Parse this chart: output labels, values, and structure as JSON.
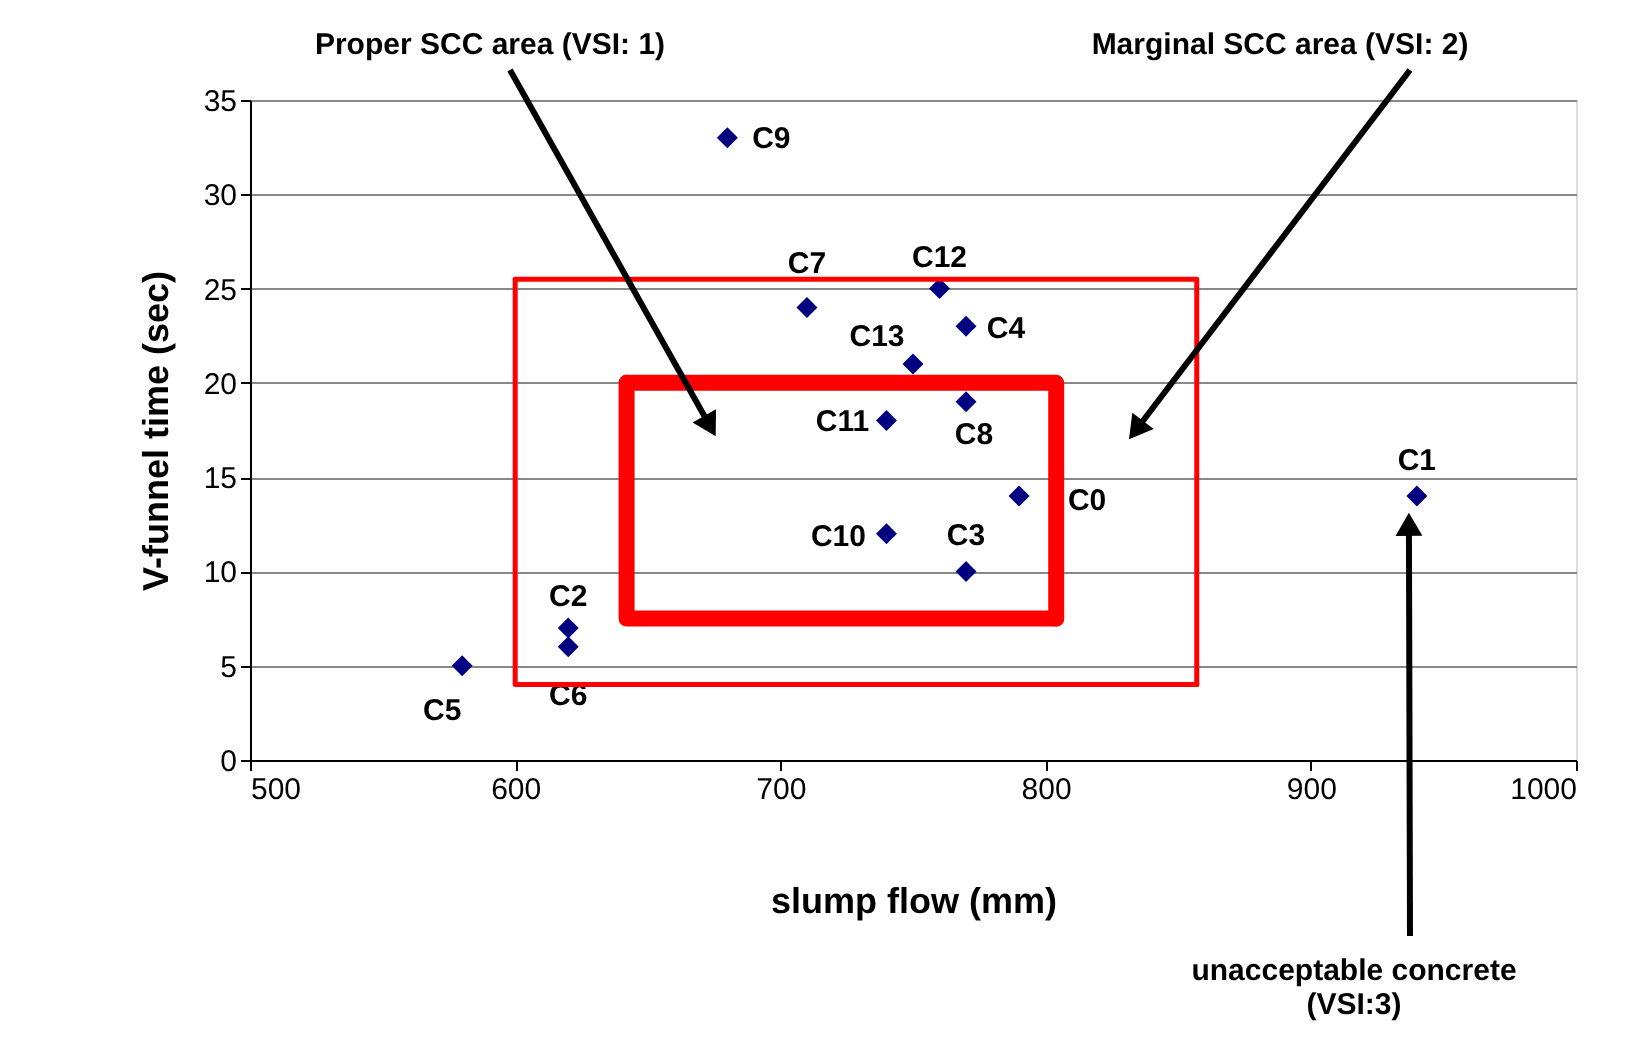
{
  "chart_data": {
    "type": "scatter",
    "xlabel": "slump flow (mm)",
    "ylabel": "V-funnel time (sec)",
    "xlim": [
      500,
      1000
    ],
    "xticks": [
      500,
      600,
      700,
      800,
      900,
      {
        "value": 1000,
        "label": "1000"
      }
    ],
    "ylim": [
      0,
      35
    ],
    "yticks": [
      0,
      5,
      10,
      15,
      20,
      25,
      30,
      35
    ],
    "grid": "y",
    "marker": "diamond",
    "series": [
      {
        "name": "C9",
        "color": "#000080",
        "x": [
          680
        ],
        "values": [
          33
        ]
      },
      {
        "name": "C7",
        "color": "#000080",
        "x": [
          710
        ],
        "values": [
          24
        ]
      },
      {
        "name": "C12",
        "color": "#000080",
        "x": [
          760
        ],
        "values": [
          25
        ]
      },
      {
        "name": "C4",
        "color": "#000080",
        "x": [
          770
        ],
        "values": [
          23
        ]
      },
      {
        "name": "C13",
        "color": "#000080",
        "x": [
          750
        ],
        "values": [
          21
        ]
      },
      {
        "name": "C8",
        "color": "#000080",
        "x": [
          770
        ],
        "values": [
          19
        ]
      },
      {
        "name": "C11",
        "color": "#000080",
        "x": [
          740
        ],
        "values": [
          18
        ]
      },
      {
        "name": "C0",
        "color": "#000080",
        "x": [
          790
        ],
        "values": [
          14
        ]
      },
      {
        "name": "C10",
        "color": "#000080",
        "x": [
          740
        ],
        "values": [
          12
        ]
      },
      {
        "name": "C3",
        "color": "#000080",
        "x": [
          770
        ],
        "values": [
          10
        ]
      },
      {
        "name": "C1",
        "color": "#000080",
        "x": [
          940
        ],
        "values": [
          14
        ]
      },
      {
        "name": "C2",
        "color": "#000080",
        "x": [
          620
        ],
        "values": [
          7
        ]
      },
      {
        "name": "C6",
        "color": "#000080",
        "x": [
          620
        ],
        "values": [
          6
        ]
      },
      {
        "name": "C5",
        "color": "#000080",
        "x": [
          580
        ],
        "values": [
          5
        ]
      },
      {
        "type": "line",
        "marker": "none",
        "color": "#ff0000",
        "x": [
          600,
          857,
          857
        ],
        "values": [
          25.5,
          25.5,
          4
        ]
      },
      {
        "type": "line",
        "marker": "none",
        "color": "#ff0000",
        "x": [
          600,
          600,
          857
        ],
        "values": [
          25.5,
          4,
          4
        ]
      },
      {
        "type": "line",
        "marker": "none",
        "color": "#ff0000",
        "x": [
          642,
          804,
          804
        ],
        "values": [
          20,
          20,
          7.5
        ]
      },
      {
        "type": "line",
        "marker": "none",
        "color": "#ff0000",
        "x": [
          642,
          642,
          804
        ],
        "values": [
          20,
          7.5,
          7.5
        ]
      }
    ],
    "annotations": [
      "Proper SCC area (VSI: 1)",
      "Marginal SCC area (VSI: 2)",
      {
        "text": "unacceptable concrete\n(VSI:3)",
        "x": 937,
        "y": 12.5
      }
    ]
  }
}
